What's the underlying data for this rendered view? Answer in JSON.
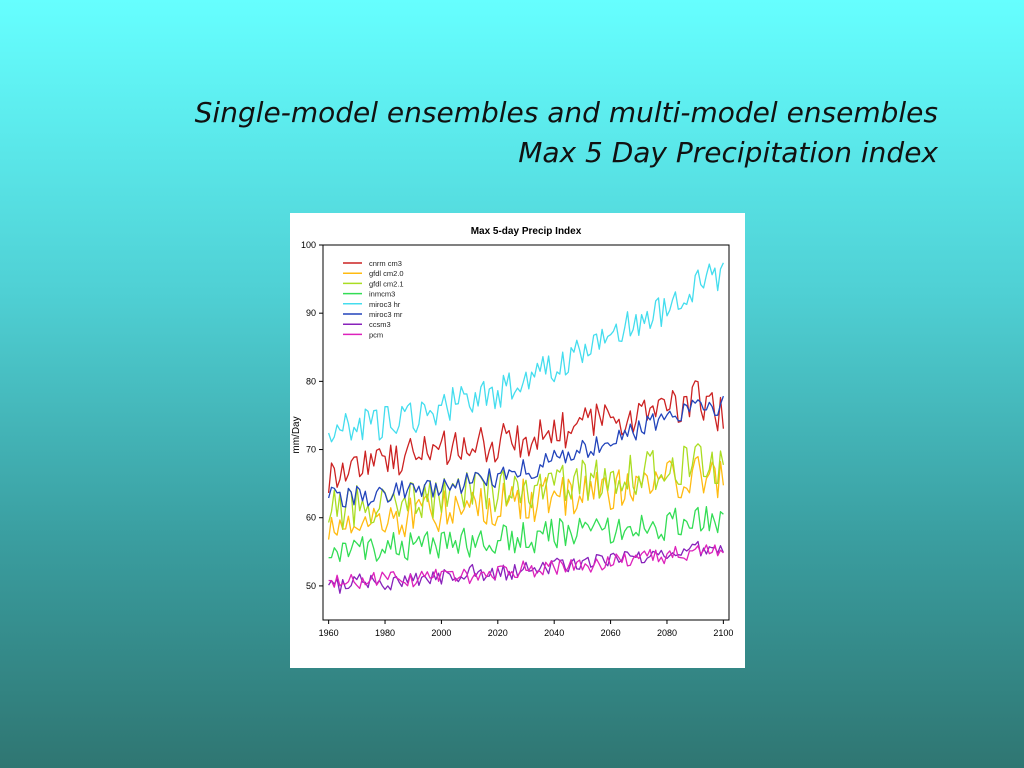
{
  "slide": {
    "title_line1": "Single-model ensembles and multi-model ensembles",
    "title_line2": "Max 5 Day Precipitation index"
  },
  "chart_data": {
    "type": "line",
    "title": "Max 5-day Precip Index",
    "xlabel": "",
    "ylabel": "mm/Day",
    "xlim": [
      1958,
      2102
    ],
    "ylim": [
      45,
      100
    ],
    "x_ticks": [
      1960,
      1980,
      2000,
      2020,
      2040,
      2060,
      2080,
      2100
    ],
    "y_ticks": [
      50,
      60,
      70,
      80,
      90,
      100
    ],
    "grid": false,
    "legend_position": "top-left",
    "series": [
      {
        "name": "cnrm cm3",
        "color": "#cc2222",
        "x": [
          1960,
          1970,
          1980,
          1990,
          2000,
          2010,
          2020,
          2030,
          2040,
          2050,
          2060,
          2070,
          2080,
          2090,
          2100
        ],
        "y": [
          66,
          68,
          68.5,
          69,
          70,
          70.5,
          71,
          71.5,
          72.5,
          73.5,
          74.5,
          75,
          76,
          77.5,
          75
        ]
      },
      {
        "name": "gfdl cm2.0",
        "color": "#ffbb11",
        "x": [
          1960,
          1970,
          1980,
          1990,
          2000,
          2010,
          2020,
          2030,
          2040,
          2050,
          2060,
          2070,
          2080,
          2090,
          2100
        ],
        "y": [
          59,
          59.5,
          60,
          60,
          61,
          61.5,
          62,
          62.5,
          63,
          63.5,
          64,
          65,
          65.5,
          66,
          66
        ]
      },
      {
        "name": "gfdl cm2.1",
        "color": "#aadd22",
        "x": [
          1960,
          1970,
          1980,
          1990,
          2000,
          2010,
          2020,
          2030,
          2040,
          2050,
          2060,
          2070,
          2080,
          2090,
          2100
        ],
        "y": [
          61,
          61.5,
          62,
          62.5,
          63,
          63.5,
          64,
          64.5,
          65,
          65.5,
          66,
          66.5,
          67,
          68,
          68
        ]
      },
      {
        "name": "inmcm3",
        "color": "#33dd55",
        "x": [
          1960,
          1970,
          1980,
          1990,
          2000,
          2010,
          2020,
          2030,
          2040,
          2050,
          2060,
          2070,
          2080,
          2090,
          2100
        ],
        "y": [
          55,
          55.5,
          55.5,
          56,
          56,
          56.5,
          57,
          57,
          57.5,
          58,
          58,
          58.5,
          59,
          59.5,
          60
        ]
      },
      {
        "name": "miroc3 hr",
        "color": "#44ddee",
        "x": [
          1960,
          1970,
          1980,
          1990,
          2000,
          2010,
          2020,
          2030,
          2040,
          2050,
          2060,
          2070,
          2080,
          2090,
          2100
        ],
        "y": [
          73,
          73.5,
          74,
          75,
          76,
          77.5,
          78.5,
          80,
          82,
          84,
          86,
          89,
          91,
          94,
          96
        ]
      },
      {
        "name": "miroc3 mr",
        "color": "#2244bb",
        "x": [
          1960,
          1970,
          1980,
          1990,
          2000,
          2010,
          2020,
          2030,
          2040,
          2050,
          2060,
          2070,
          2080,
          2090,
          2100
        ],
        "y": [
          63,
          63,
          63.5,
          64,
          64.5,
          65,
          66,
          67,
          68.5,
          70,
          71.5,
          73,
          74.5,
          76,
          76.5
        ]
      },
      {
        "name": "ccsm3",
        "color": "#8822bb",
        "x": [
          1960,
          1970,
          1980,
          1990,
          2000,
          2010,
          2020,
          2030,
          2040,
          2050,
          2060,
          2070,
          2080,
          2090,
          2100
        ],
        "y": [
          50,
          50.5,
          50.5,
          51,
          51.5,
          52,
          52,
          52.5,
          53,
          53.5,
          54,
          54.5,
          55,
          55.5,
          56
        ]
      },
      {
        "name": "pcm",
        "color": "#dd22bb",
        "x": [
          1960,
          1970,
          1980,
          1990,
          2000,
          2010,
          2020,
          2030,
          2040,
          2050,
          2060,
          2070,
          2080,
          2090,
          2100
        ],
        "y": [
          50.5,
          50.5,
          51,
          51,
          51.5,
          51.5,
          52,
          52.5,
          52.5,
          53,
          53.5,
          54,
          54.5,
          55,
          55.5
        ]
      }
    ]
  }
}
